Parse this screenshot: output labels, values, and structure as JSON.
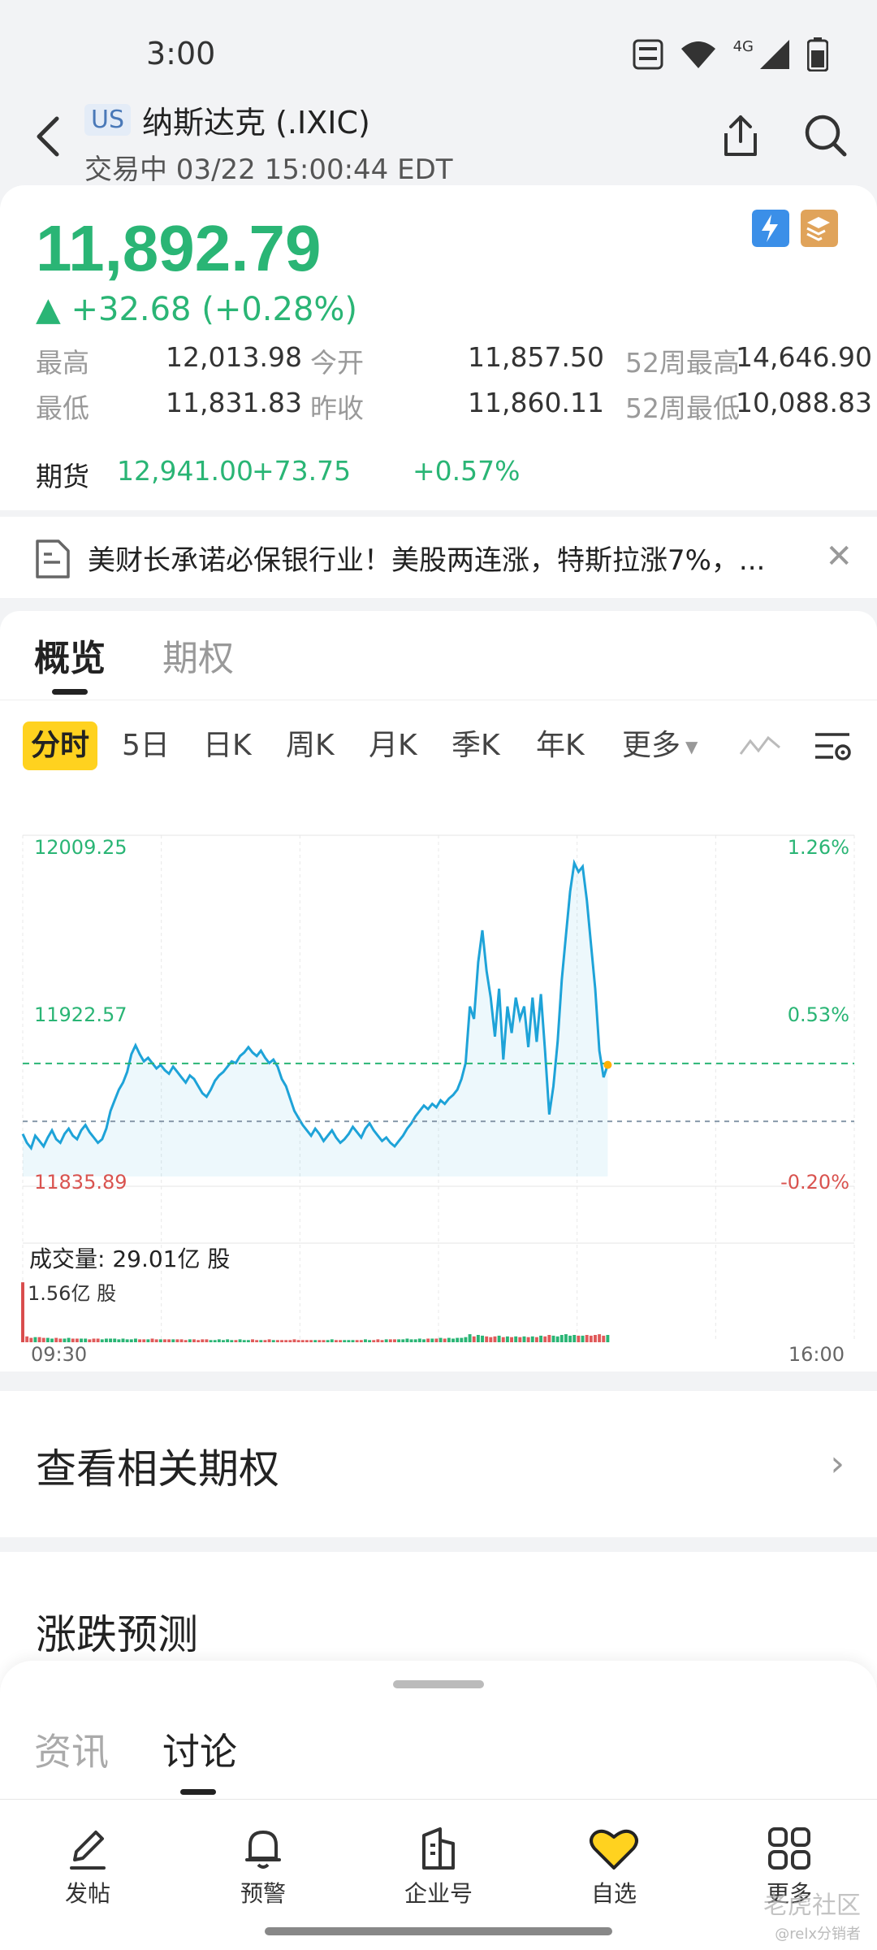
{
  "status_bar": {
    "time": "3:00",
    "net": "4G"
  },
  "header": {
    "market_badge": "US",
    "name": "纳斯达克 (.IXIC)",
    "status_line": "交易中 03/22 15:00:44 EDT"
  },
  "quote": {
    "price": "11,892.79",
    "change": "▲ +32.68 (+0.28%)",
    "stats": [
      {
        "label": "最高",
        "value": "12,013.98",
        "label2": "今开",
        "value2": "11,857.50",
        "label3": "52周最高",
        "value3": "14,646.90"
      },
      {
        "label": "最低",
        "value": "11,831.83",
        "label2": "昨收",
        "value2": "11,860.11",
        "label3": "52周最低",
        "value3": "10,088.83"
      }
    ],
    "futures": {
      "label": "期货",
      "price": "12,941.00",
      "change": "+73.75",
      "pct": "+0.57%"
    }
  },
  "news_ticker": {
    "text": "美财长承诺必保银行业！美股两连涨，特斯拉涨7%，..."
  },
  "tabs": {
    "overview": "概览",
    "options": "期权"
  },
  "periods": [
    "分时",
    "5日",
    "日K",
    "周K",
    "月K",
    "季K",
    "年K",
    "更多"
  ],
  "chart_data": {
    "type": "line",
    "title": "",
    "y_left_ticks": [
      "12009.25",
      "11922.57",
      "11835.89"
    ],
    "y_right_ticks": [
      "1.26%",
      "0.53%",
      "-0.20%"
    ],
    "ylim": [
      11835.89,
      12009.25
    ],
    "prev_close": 11860.11,
    "open_ref": 11892.79,
    "x_labels": [
      "09:30",
      "16:00"
    ],
    "volume_label": "成交量: 29.01亿 股",
    "volume_max_label": "1.56亿 股",
    "series": [
      {
        "values": [
          11853,
          11848,
          11845,
          11852,
          11849,
          11846,
          11851,
          11855,
          11850,
          11848,
          11853,
          11856,
          11852,
          11850,
          11855,
          11858,
          11854,
          11851,
          11848,
          11850,
          11856,
          11866,
          11872,
          11878,
          11882,
          11888,
          11898,
          11903,
          11898,
          11894,
          11896,
          11893,
          11890,
          11892,
          11889,
          11887,
          11891,
          11888,
          11885,
          11882,
          11886,
          11884,
          11880,
          11876,
          11874,
          11878,
          11883,
          11886,
          11888,
          11891,
          11894,
          11893,
          11897,
          11899,
          11902,
          11899,
          11897,
          11900,
          11896,
          11893,
          11895,
          11891,
          11884,
          11880,
          11873,
          11866,
          11862,
          11858,
          11855,
          11852,
          11856,
          11853,
          11849,
          11852,
          11855,
          11851,
          11848,
          11850,
          11853,
          11857,
          11854,
          11851,
          11856,
          11859,
          11855,
          11852,
          11849,
          11851,
          11848,
          11846,
          11849,
          11852,
          11856,
          11859,
          11863,
          11866,
          11869,
          11867,
          11870,
          11868,
          11872,
          11870,
          11873,
          11875,
          11878,
          11884,
          11893,
          11925,
          11918,
          11950,
          11968,
          11945,
          11930,
          11908,
          11935,
          11895,
          11925,
          11910,
          11930,
          11918,
          11925,
          11902,
          11930,
          11905,
          11932,
          11900,
          11864,
          11880,
          11905,
          11940,
          11965,
          11990,
          12006,
          12001,
          12004,
          11985,
          11960,
          11935,
          11900,
          11885,
          11892
        ]
      }
    ],
    "volume": [
      0.82,
      0.08,
      0.06,
      0.07,
      0.07,
      0.06,
      0.06,
      0.05,
      0.06,
      0.05,
      0.05,
      0.06,
      0.05,
      0.05,
      0.05,
      0.05,
      0.04,
      0.05,
      0.05,
      0.04,
      0.05,
      0.05,
      0.05,
      0.04,
      0.05,
      0.04,
      0.04,
      0.05,
      0.04,
      0.04,
      0.04,
      0.05,
      0.04,
      0.04,
      0.04,
      0.04,
      0.04,
      0.04,
      0.04,
      0.03,
      0.04,
      0.04,
      0.03,
      0.04,
      0.04,
      0.03,
      0.03,
      0.04,
      0.03,
      0.04,
      0.03,
      0.03,
      0.04,
      0.03,
      0.03,
      0.04,
      0.03,
      0.03,
      0.03,
      0.04,
      0.03,
      0.03,
      0.03,
      0.03,
      0.03,
      0.04,
      0.03,
      0.03,
      0.03,
      0.03,
      0.03,
      0.03,
      0.03,
      0.03,
      0.04,
      0.03,
      0.03,
      0.03,
      0.03,
      0.03,
      0.03,
      0.03,
      0.04,
      0.03,
      0.03,
      0.04,
      0.03,
      0.04,
      0.04,
      0.04,
      0.04,
      0.04,
      0.05,
      0.04,
      0.04,
      0.05,
      0.04,
      0.05,
      0.05,
      0.05,
      0.06,
      0.05,
      0.06,
      0.05,
      0.06,
      0.06,
      0.07,
      0.11,
      0.08,
      0.1,
      0.09,
      0.08,
      0.07,
      0.08,
      0.09,
      0.07,
      0.08,
      0.07,
      0.08,
      0.07,
      0.08,
      0.07,
      0.08,
      0.07,
      0.09,
      0.08,
      0.1,
      0.09,
      0.08,
      0.1,
      0.11,
      0.09,
      0.1,
      0.09,
      0.09,
      0.1,
      0.09,
      0.1,
      0.11,
      0.09,
      0.1
    ]
  },
  "related_options": {
    "label": "查看相关期权"
  },
  "prediction": {
    "label": "涨跌预测"
  },
  "sheet_tabs": {
    "news": "资讯",
    "discuss": "讨论"
  },
  "bottom_nav": {
    "post": "发帖",
    "alert": "预警",
    "company": "企业号",
    "watchlist": "自选",
    "more": "更多"
  },
  "colors": {
    "up_green": "#2ab575",
    "down_red": "#e05a5a",
    "line_blue": "#1ea3d8",
    "accent_yellow": "#ffd21f"
  },
  "watermark": {
    "line1": "老虎社区",
    "line2": "@relx分销者"
  }
}
